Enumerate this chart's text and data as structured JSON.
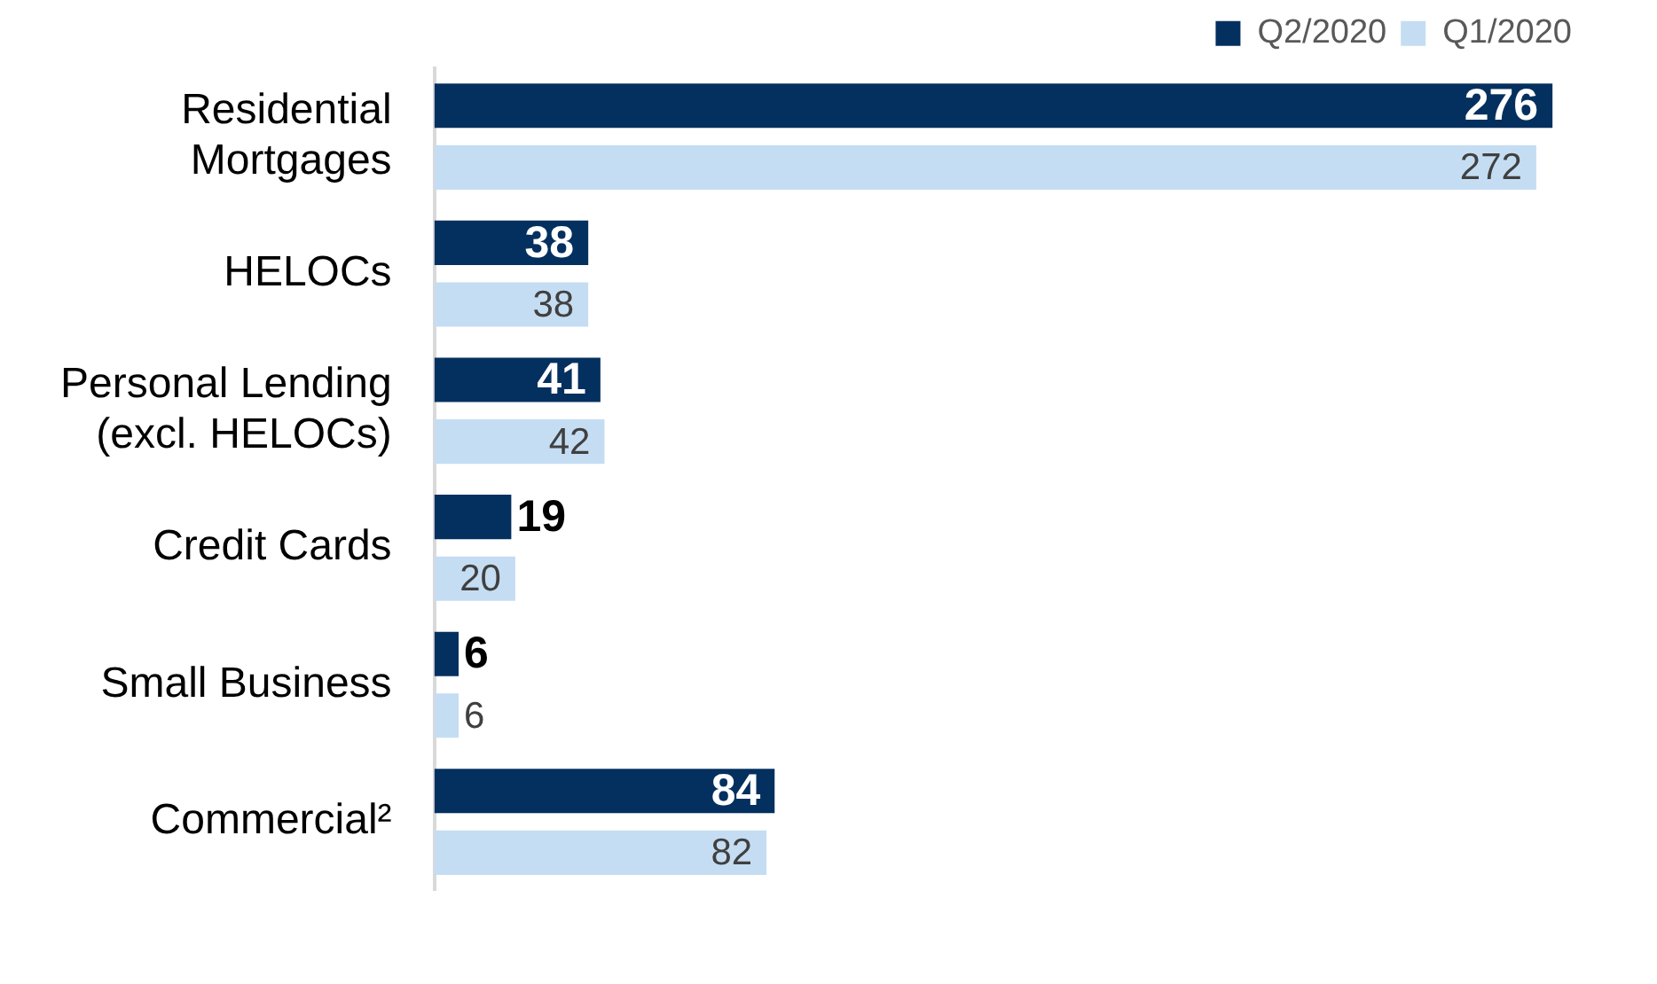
{
  "chart_data": {
    "type": "bar",
    "orientation": "horizontal",
    "categories": [
      "Residential\nMortgages",
      "HELOCs",
      "Personal Lending\n(excl. HELOCs)",
      "Credit Cards",
      "Small Business",
      "Commercial²"
    ],
    "series": [
      {
        "name": "Q2/2020",
        "color": "#04305f",
        "values": [
          276,
          38,
          41,
          19,
          6,
          84
        ]
      },
      {
        "name": "Q1/2020",
        "color": "#c5ddf3",
        "values": [
          272,
          38,
          42,
          20,
          6,
          82
        ]
      }
    ],
    "data_labels": true,
    "legend": "top right"
  }
}
